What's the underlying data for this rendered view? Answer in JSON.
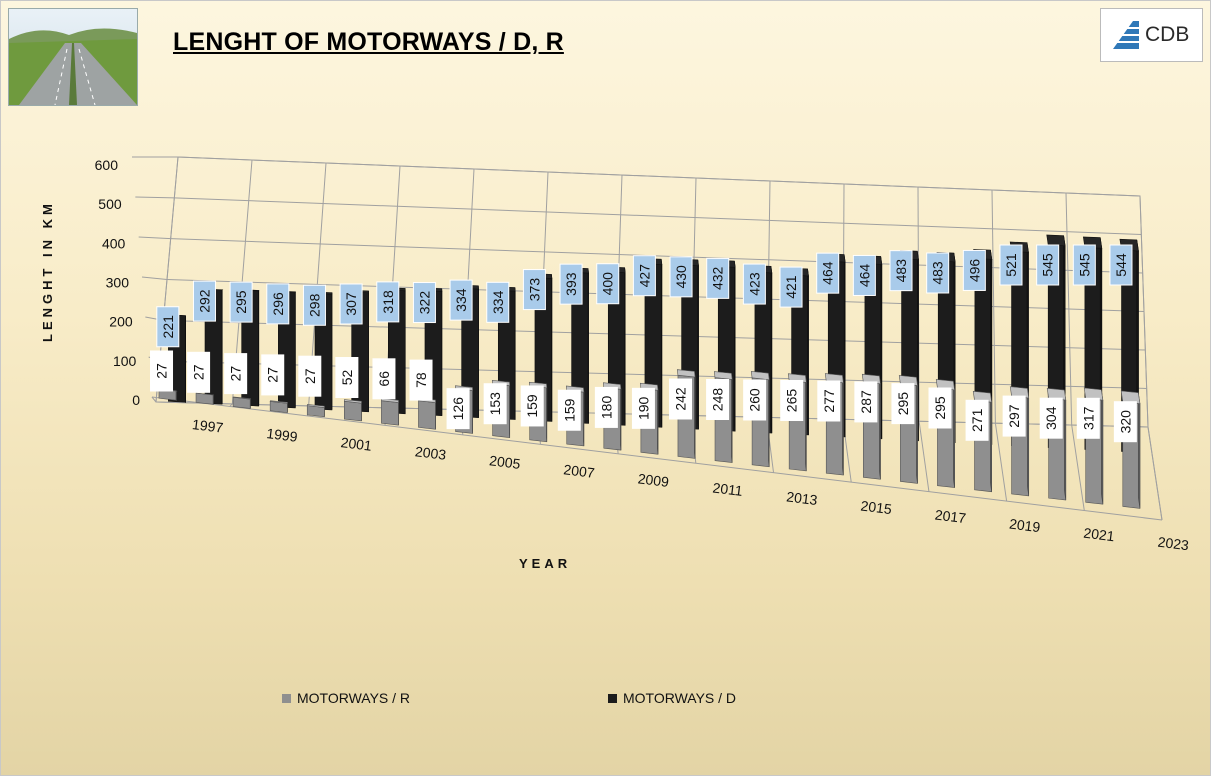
{
  "title": "LENGHT OF MOTORWAYS / D, R",
  "logo": {
    "text": "CDB",
    "icon": "cdb-logo-icon"
  },
  "photo": {
    "icon": "motorway-photo"
  },
  "colors": {
    "series_r": "#8f8f8f",
    "series_d": "#1c1c1c",
    "label_bg_d": "#a9cbea",
    "label_bg_r": "#ffffff",
    "grid": "#a0a0a0"
  },
  "legend": {
    "r": "MOTORWAYS / R",
    "d": "MOTORWAYS / D"
  },
  "chart_data": {
    "type": "bar",
    "title": "LENGHT OF MOTORWAYS / D, R",
    "xlabel": "YEAR",
    "ylabel": "LENGHT IN KM",
    "ylim": [
      0,
      600
    ],
    "yticks": [
      0,
      100,
      200,
      300,
      400,
      500,
      600
    ],
    "categories": [
      "1997",
      "1998",
      "1999",
      "2000",
      "2001",
      "2002",
      "2003",
      "2004",
      "2005",
      "2006",
      "2007",
      "2008",
      "2009",
      "2010",
      "2011",
      "2012",
      "2013",
      "2014",
      "2015",
      "2016",
      "2017",
      "2018",
      "2019",
      "2020",
      "2021",
      "2022",
      "2023"
    ],
    "xtick_labels": [
      "1997",
      "",
      "1999",
      "",
      "2001",
      "",
      "2003",
      "",
      "2005",
      "",
      "2007",
      "",
      "2009",
      "",
      "2011",
      "",
      "2013",
      "",
      "2015",
      "",
      "2017",
      "",
      "2019",
      "",
      "2021",
      "",
      "2023"
    ],
    "series": [
      {
        "name": "MOTORWAYS / R",
        "values": [
          27,
          27,
          27,
          27,
          27,
          52,
          66,
          78,
          126,
          153,
          159,
          159,
          180,
          190,
          242,
          248,
          260,
          265,
          277,
          287,
          295,
          295,
          271,
          297,
          304,
          317,
          320
        ]
      },
      {
        "name": "MOTORWAYS / D",
        "values": [
          221,
          292,
          295,
          296,
          298,
          307,
          318,
          322,
          334,
          334,
          373,
          393,
          400,
          427,
          430,
          432,
          423,
          421,
          464,
          464,
          483,
          483,
          496,
          521,
          545,
          545,
          544
        ]
      }
    ],
    "grid": true,
    "legend_position": "bottom",
    "projection": "3d"
  }
}
